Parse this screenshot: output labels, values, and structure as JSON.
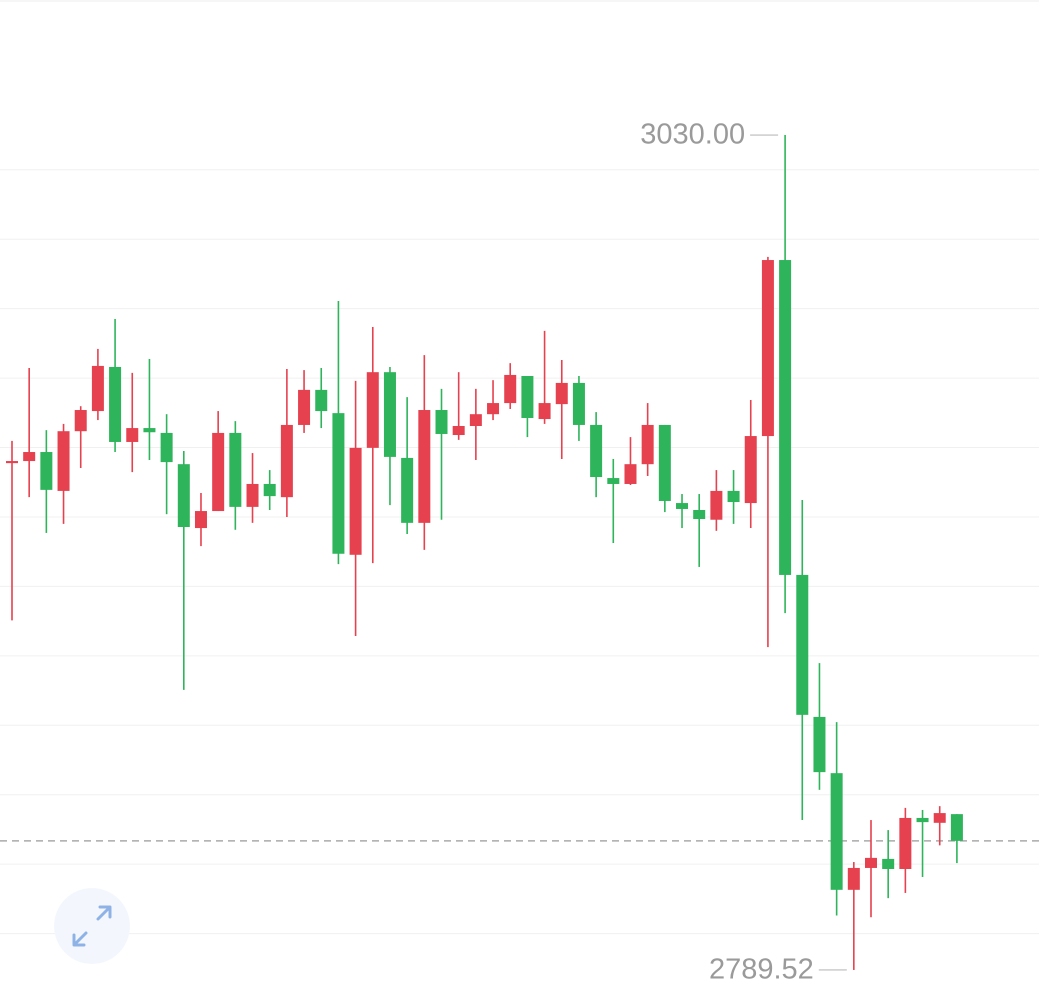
{
  "chart_data": {
    "type": "candlestick",
    "up_color": "#e5414f",
    "down_color": "#2eb45a",
    "ylim": [
      2780.0,
      3068.9
    ],
    "gridlines": [
      2800,
      2820,
      2840,
      2860,
      2880,
      2900,
      2920,
      2940,
      2960,
      2980,
      3000,
      3020
    ],
    "open": [
      2935.5,
      2936.1,
      2938.7,
      2927.5,
      2944.7,
      2950.5,
      2963.2,
      2941.6,
      2945.6,
      2944.2,
      2935.2,
      2916.8,
      2921.7,
      2944.2,
      2922.9,
      2929.5,
      2925.7,
      2946.5,
      2956.6,
      2949.9,
      2909.1,
      2939.9,
      2961.7,
      2937.0,
      2918.3,
      2950.8,
      2943.6,
      2946.2,
      2949.6,
      2952.8,
      2960.6,
      2948.2,
      2952.5,
      2958.6,
      2946.5,
      2931.2,
      2929.5,
      2935.2,
      2946.5,
      2924.0,
      2922.0,
      2919.2,
      2927.5,
      2924.0,
      2943.3,
      2994.0,
      2903.3,
      2862.4,
      2846.2,
      2812.6,
      2818.9,
      2821.5,
      2818.6,
      2833.3,
      2831.9,
      2834.4
    ],
    "high": [
      2941.9,
      2962.9,
      2945.0,
      2946.8,
      2951.9,
      2968.4,
      2977.0,
      2961.5,
      2965.5,
      2949.6,
      2939.0,
      2926.9,
      2950.5,
      2947.6,
      2938.4,
      2933.5,
      2962.6,
      2962.3,
      2962.9,
      2982.2,
      2959.2,
      2974.7,
      2963.2,
      2954.5,
      2966.6,
      2956.9,
      2961.7,
      2956.9,
      2959.4,
      2964.3,
      2960.6,
      2973.6,
      2965.2,
      2960.6,
      2950.2,
      2936.7,
      2943.0,
      2952.8,
      2946.5,
      2926.6,
      2926.6,
      2933.5,
      2933.5,
      2953.7,
      2994.9,
      3030,
      2924.9,
      2877.9,
      2860.9,
      2820.6,
      2832.7,
      2829.8,
      2836.2,
      2835.6,
      2836.7,
      2834.4
    ],
    "low": [
      2890.2,
      2925.7,
      2915.4,
      2918.0,
      2934.1,
      2947.9,
      2938.7,
      2932.9,
      2936.4,
      2920.8,
      2870.2,
      2911.6,
      2921.7,
      2916.3,
      2918.3,
      2922.0,
      2920.0,
      2944.2,
      2945.6,
      2906.4,
      2885.7,
      2906.7,
      2923.4,
      2915.1,
      2910.5,
      2919.2,
      2942.2,
      2936.4,
      2947.9,
      2951.1,
      2943.0,
      2946.8,
      2936.7,
      2941.9,
      2925.7,
      2912.5,
      2929.2,
      2931.8,
      2921.4,
      2916.8,
      2905.6,
      2916.0,
      2918.0,
      2916.8,
      2882.5,
      2892.3,
      2832.7,
      2841.4,
      2805.2,
      2789.52,
      2804.7,
      2810.2,
      2811.7,
      2816.3,
      2825.4,
      2820.3
    ],
    "close": [
      2936.1,
      2938.7,
      2927.8,
      2944.7,
      2950.8,
      2963.5,
      2941.6,
      2945.6,
      2944.4,
      2935.8,
      2917.1,
      2921.7,
      2944.2,
      2922.9,
      2929.5,
      2926.0,
      2946.5,
      2956.6,
      2950.5,
      2909.4,
      2939.9,
      2961.7,
      2937.3,
      2918.3,
      2950.8,
      2943.9,
      2946.2,
      2949.6,
      2952.8,
      2960.9,
      2948.5,
      2952.8,
      2958.6,
      2946.5,
      2931.5,
      2929.5,
      2935.2,
      2946.5,
      2924.6,
      2922.3,
      2919.4,
      2927.5,
      2924.3,
      2943.3,
      2994.0,
      2903.3,
      2863.0,
      2846.5,
      2812.6,
      2818.9,
      2821.8,
      2818.6,
      2833.3,
      2832.1,
      2834.7,
      2826.7
    ],
    "annotations": [
      {
        "value": 3030,
        "label": "3030.00"
      },
      {
        "value": 2789.52,
        "label": "2789.52"
      }
    ]
  }
}
